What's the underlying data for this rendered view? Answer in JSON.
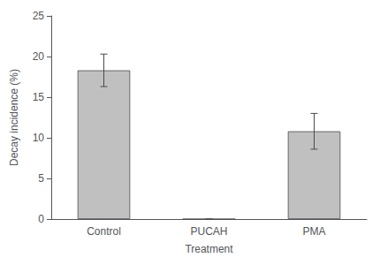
{
  "chart_data": {
    "type": "bar",
    "categories": [
      "Control",
      "PUCAH",
      "PMA"
    ],
    "values": [
      18.3,
      0.0,
      10.8
    ],
    "errors": [
      2.0,
      0.0,
      2.2
    ],
    "color": "#c0c0c0",
    "xlabel": "Treatment",
    "ylabel": "Decay incidence (%)",
    "ylim": [
      0,
      25
    ],
    "yticks": [
      0,
      5,
      10,
      15,
      20,
      25
    ],
    "grid": false
  }
}
